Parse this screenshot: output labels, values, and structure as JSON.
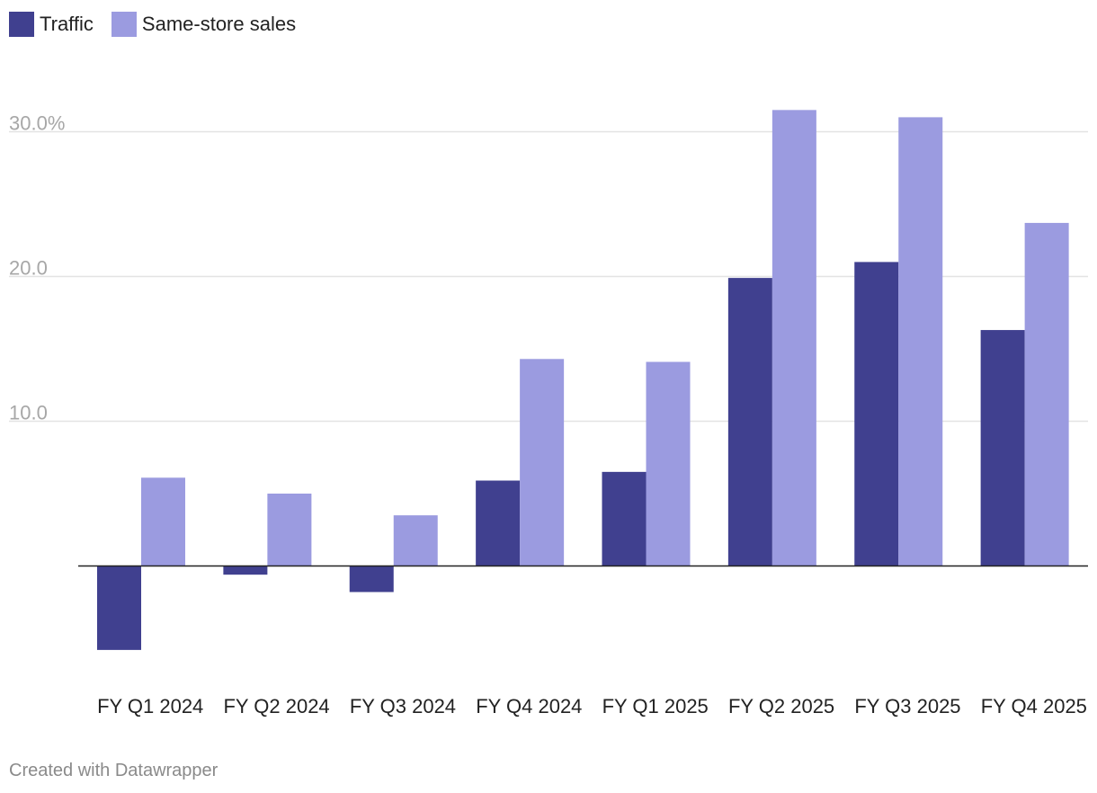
{
  "chart_data": {
    "type": "bar",
    "title": "",
    "xlabel": "",
    "ylabel": "",
    "categories": [
      "FY Q1 2024",
      "FY Q2 2024",
      "FY Q3 2024",
      "FY Q4 2024",
      "FY Q1 2025",
      "FY Q2 2025",
      "FY Q3 2025",
      "FY Q4 2025"
    ],
    "series": [
      {
        "name": "Traffic",
        "color": "#40408f",
        "values": [
          -5.8,
          -0.6,
          -1.8,
          5.9,
          6.5,
          19.9,
          21.0,
          16.3
        ]
      },
      {
        "name": "Same-store sales",
        "color": "#9b9be0",
        "values": [
          6.1,
          5.0,
          3.5,
          14.3,
          14.1,
          31.5,
          31.0,
          23.7
        ]
      }
    ],
    "ylim": [
      -7.5,
      33
    ],
    "yticks": [
      {
        "value": 10,
        "label": "10.0"
      },
      {
        "value": 20,
        "label": "20.0"
      },
      {
        "value": 30,
        "label": "30.0%"
      }
    ],
    "grid": true,
    "legend_position": "top-left"
  },
  "footer": {
    "credit": "Created with Datawrapper"
  }
}
